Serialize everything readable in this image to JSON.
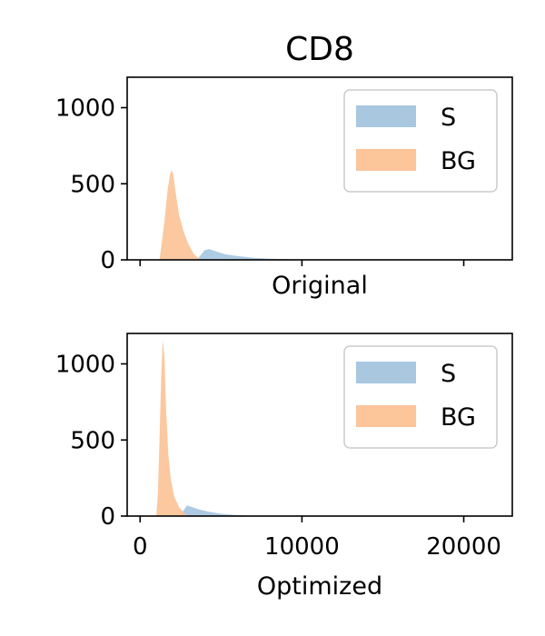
{
  "title": "CD8",
  "colors": {
    "S": "#a9c8e0",
    "BG": "#fcc59a",
    "axis": "#000000"
  },
  "chart_data": [
    {
      "type": "histogram",
      "xlabel": "Original",
      "ylabel": "",
      "xlim": [
        -800,
        23000
      ],
      "ylim": [
        0,
        1200
      ],
      "x_tick_values": [
        0,
        10000,
        20000
      ],
      "x_tick_labels_shown": false,
      "y_ticks": [
        0,
        500,
        1000
      ],
      "legend": {
        "placement": "top-right",
        "entries": [
          "S",
          "BG"
        ]
      },
      "series": [
        {
          "name": "S",
          "points": [
            [
              3500,
              0
            ],
            [
              3700,
              25
            ],
            [
              4000,
              65
            ],
            [
              4300,
              70
            ],
            [
              4700,
              55
            ],
            [
              5200,
              38
            ],
            [
              6000,
              25
            ],
            [
              7000,
              14
            ],
            [
              8000,
              8
            ],
            [
              9000,
              4
            ],
            [
              10500,
              1
            ],
            [
              12000,
              0
            ]
          ]
        },
        {
          "name": "BG",
          "points": [
            [
              1200,
              0
            ],
            [
              1300,
              80
            ],
            [
              1500,
              250
            ],
            [
              1700,
              460
            ],
            [
              1850,
              560
            ],
            [
              1950,
              590
            ],
            [
              2050,
              560
            ],
            [
              2200,
              440
            ],
            [
              2400,
              300
            ],
            [
              2700,
              180
            ],
            [
              3000,
              100
            ],
            [
              3300,
              40
            ],
            [
              3600,
              10
            ],
            [
              3900,
              0
            ]
          ]
        }
      ]
    },
    {
      "type": "histogram",
      "xlabel": "Optimized",
      "ylabel": "",
      "xlim": [
        -800,
        23000
      ],
      "ylim": [
        0,
        1200
      ],
      "x_ticks": [
        0,
        10000,
        20000
      ],
      "y_ticks": [
        0,
        500,
        1000
      ],
      "legend": {
        "placement": "top-right",
        "entries": [
          "S",
          "BG"
        ]
      },
      "series": [
        {
          "name": "S",
          "points": [
            [
              2400,
              0
            ],
            [
              2700,
              40
            ],
            [
              2900,
              70
            ],
            [
              3200,
              60
            ],
            [
              3600,
              45
            ],
            [
              4200,
              30
            ],
            [
              5000,
              15
            ],
            [
              6000,
              6
            ],
            [
              7000,
              2
            ],
            [
              8000,
              0
            ]
          ]
        },
        {
          "name": "BG",
          "points": [
            [
              1000,
              0
            ],
            [
              1100,
              150
            ],
            [
              1200,
              500
            ],
            [
              1300,
              900
            ],
            [
              1400,
              1160
            ],
            [
              1500,
              1050
            ],
            [
              1600,
              700
            ],
            [
              1750,
              400
            ],
            [
              1900,
              240
            ],
            [
              2100,
              130
            ],
            [
              2400,
              60
            ],
            [
              2700,
              20
            ],
            [
              3000,
              0
            ]
          ]
        }
      ]
    }
  ]
}
